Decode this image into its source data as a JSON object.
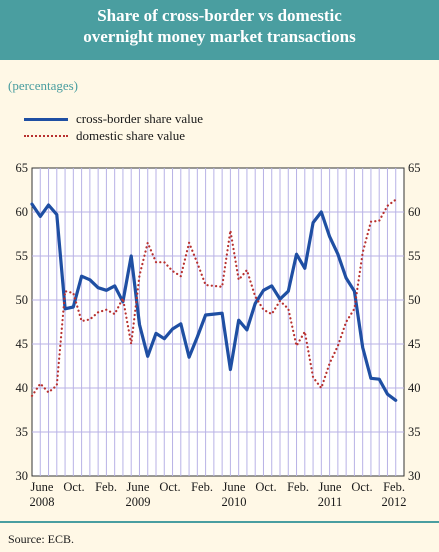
{
  "header": {
    "title_line1": "Share of cross-border vs domestic",
    "title_line2": "overnight money market transactions"
  },
  "units_note": "(percentages)",
  "source": "Source: ECB.",
  "colors": {
    "header": "#4a9ea0",
    "cross_border": "#1f4fa3",
    "domestic": "#b8312f",
    "grid": "#b8b2e6"
  },
  "chart_data": {
    "type": "line",
    "ylim": [
      30,
      65
    ],
    "yticks": [
      30,
      35,
      40,
      45,
      50,
      55,
      60,
      65
    ],
    "grid": true,
    "legend_position": "top-left",
    "x_tick_labels": [
      {
        "month": "June",
        "year": "2008"
      },
      {
        "month": "Oct.",
        "year": ""
      },
      {
        "month": "Feb.",
        "year": ""
      },
      {
        "month": "June",
        "year": "2009"
      },
      {
        "month": "Oct.",
        "year": ""
      },
      {
        "month": "Feb.",
        "year": ""
      },
      {
        "month": "June",
        "year": "2010"
      },
      {
        "month": "Oct.",
        "year": ""
      },
      {
        "month": "Feb.",
        "year": ""
      },
      {
        "month": "June",
        "year": "2011"
      },
      {
        "month": "Oct.",
        "year": ""
      },
      {
        "month": "Feb.",
        "year": "2012"
      }
    ],
    "x_range": [
      "2008-06",
      "2012-03"
    ],
    "series": [
      {
        "name": "cross-border share value",
        "style": "solid",
        "color": "#1f4fa3",
        "points": [
          [
            "2008-06",
            60.9
          ],
          [
            "2008-07",
            59.5
          ],
          [
            "2008-08",
            60.8
          ],
          [
            "2008-09",
            59.7
          ],
          [
            "2008-10",
            49.0
          ],
          [
            "2008-11",
            49.2
          ],
          [
            "2008-12",
            52.7
          ],
          [
            "2009-01",
            52.3
          ],
          [
            "2009-02",
            51.4
          ],
          [
            "2009-03",
            51.1
          ],
          [
            "2009-04",
            51.6
          ],
          [
            "2009-05",
            49.8
          ],
          [
            "2009-06",
            55.0
          ],
          [
            "2009-07",
            47.2
          ],
          [
            "2009-08",
            43.6
          ],
          [
            "2009-09",
            46.2
          ],
          [
            "2009-10",
            45.6
          ],
          [
            "2009-11",
            46.7
          ],
          [
            "2009-12",
            47.3
          ],
          [
            "2010-01",
            43.5
          ],
          [
            "2010-02",
            45.8
          ],
          [
            "2010-03",
            48.3
          ],
          [
            "2010-04",
            48.4
          ],
          [
            "2010-05",
            48.5
          ],
          [
            "2010-06",
            42.1
          ],
          [
            "2010-07",
            47.7
          ],
          [
            "2010-08",
            46.6
          ],
          [
            "2010-09",
            49.6
          ],
          [
            "2010-10",
            51.1
          ],
          [
            "2010-11",
            51.6
          ],
          [
            "2010-12",
            50.1
          ],
          [
            "2011-01",
            51.0
          ],
          [
            "2011-02",
            55.2
          ],
          [
            "2011-03",
            53.6
          ],
          [
            "2011-04",
            58.8
          ],
          [
            "2011-05",
            60.0
          ],
          [
            "2011-06",
            57.2
          ],
          [
            "2011-07",
            55.2
          ],
          [
            "2011-08",
            52.5
          ],
          [
            "2011-09",
            51.0
          ],
          [
            "2011-10",
            44.6
          ],
          [
            "2011-11",
            41.1
          ],
          [
            "2011-12",
            41.0
          ],
          [
            "2012-01",
            39.3
          ],
          [
            "2012-02",
            38.6
          ]
        ]
      },
      {
        "name": "domestic share value",
        "style": "dotted",
        "color": "#b8312f",
        "points": [
          [
            "2008-06",
            39.1
          ],
          [
            "2008-07",
            40.5
          ],
          [
            "2008-08",
            39.5
          ],
          [
            "2008-09",
            40.3
          ],
          [
            "2008-10",
            51.0
          ],
          [
            "2008-11",
            50.8
          ],
          [
            "2008-12",
            47.6
          ],
          [
            "2009-01",
            47.8
          ],
          [
            "2009-02",
            48.6
          ],
          [
            "2009-03",
            48.9
          ],
          [
            "2009-04",
            48.4
          ],
          [
            "2009-05",
            50.2
          ],
          [
            "2009-06",
            45.0
          ],
          [
            "2009-07",
            52.8
          ],
          [
            "2009-08",
            56.5
          ],
          [
            "2009-09",
            54.3
          ],
          [
            "2009-10",
            54.3
          ],
          [
            "2009-11",
            53.3
          ],
          [
            "2009-12",
            52.7
          ],
          [
            "2010-01",
            56.5
          ],
          [
            "2010-02",
            54.2
          ],
          [
            "2010-03",
            51.7
          ],
          [
            "2010-04",
            51.6
          ],
          [
            "2010-05",
            51.5
          ],
          [
            "2010-06",
            57.9
          ],
          [
            "2010-07",
            52.3
          ],
          [
            "2010-08",
            53.4
          ],
          [
            "2010-09",
            50.4
          ],
          [
            "2010-10",
            48.9
          ],
          [
            "2010-11",
            48.4
          ],
          [
            "2010-12",
            49.9
          ],
          [
            "2011-01",
            49.0
          ],
          [
            "2011-02",
            44.8
          ],
          [
            "2011-03",
            46.4
          ],
          [
            "2011-04",
            41.2
          ],
          [
            "2011-05",
            40.0
          ],
          [
            "2011-06",
            42.8
          ],
          [
            "2011-07",
            44.8
          ],
          [
            "2011-08",
            47.5
          ],
          [
            "2011-09",
            49.0
          ],
          [
            "2011-10",
            55.4
          ],
          [
            "2011-11",
            58.9
          ],
          [
            "2011-12",
            59.0
          ],
          [
            "2012-01",
            60.7
          ],
          [
            "2012-02",
            61.4
          ]
        ]
      }
    ]
  }
}
